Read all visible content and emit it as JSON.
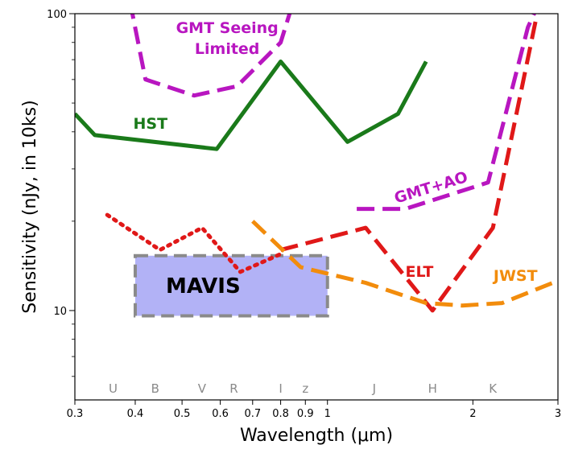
{
  "chart_data": {
    "type": "line",
    "title": "",
    "xlabel": "Wavelength (μm)",
    "ylabel": "Sensitivity (nJy, in 10ks)",
    "xscale": "log",
    "yscale": "log",
    "xlim": [
      0.3,
      3
    ],
    "ylim": [
      5,
      100
    ],
    "x_ticks": [
      {
        "value": 0.3,
        "label": "0.3"
      },
      {
        "value": 0.4,
        "label": "0.4"
      },
      {
        "value": 0.5,
        "label": "0.5"
      },
      {
        "value": 0.6,
        "label": "0.6"
      },
      {
        "value": 0.7,
        "label": "0.7"
      },
      {
        "value": 0.8,
        "label": "0.8"
      },
      {
        "value": 0.9,
        "label": "0.9"
      },
      {
        "value": 1,
        "label": "1"
      },
      {
        "value": 2,
        "label": "2"
      },
      {
        "value": 3,
        "label": "3"
      }
    ],
    "y_ticks": [
      {
        "value": 10,
        "label": "10"
      },
      {
        "value": 100,
        "label": "100"
      }
    ],
    "y_minor_ticks": [
      6,
      7,
      8,
      9,
      20,
      30,
      40,
      50,
      60,
      70,
      80,
      90
    ],
    "grid": false,
    "bands": [
      {
        "label": "U",
        "x": 0.36
      },
      {
        "label": "B",
        "x": 0.44
      },
      {
        "label": "V",
        "x": 0.55
      },
      {
        "label": "R",
        "x": 0.64
      },
      {
        "label": "I",
        "x": 0.8
      },
      {
        "label": "z",
        "x": 0.9
      },
      {
        "label": "J",
        "x": 1.25
      },
      {
        "label": "H",
        "x": 1.65
      },
      {
        "label": "K",
        "x": 2.2
      }
    ],
    "series": [
      {
        "name": "HST",
        "color": "#1a7a1a",
        "dash": "solid",
        "label_at": {
          "x": 0.43,
          "y": 41
        },
        "points": [
          [
            0.3,
            46
          ],
          [
            0.33,
            39
          ],
          [
            0.59,
            35
          ],
          [
            0.8,
            69
          ],
          [
            1.1,
            37
          ],
          [
            1.4,
            46
          ],
          [
            1.6,
            69
          ]
        ]
      },
      {
        "name": "GMT Seeing\nLimited",
        "color": "#b816c0",
        "dash": "dashed",
        "label_at": {
          "x": 0.62,
          "y": 86
        },
        "points": [
          [
            0.39,
            110
          ],
          [
            0.42,
            60
          ],
          [
            0.53,
            53
          ],
          [
            0.65,
            57
          ],
          [
            0.8,
            80
          ],
          [
            0.85,
            110
          ]
        ]
      },
      {
        "name": "GMT+AO",
        "color": "#b816c0",
        "dash": "dashed",
        "label_at": {
          "x": 1.65,
          "y": 25
        },
        "points": [
          [
            1.15,
            22
          ],
          [
            1.45,
            22
          ],
          [
            2.15,
            27
          ],
          [
            2.6,
            90
          ],
          [
            2.75,
            110
          ]
        ]
      },
      {
        "name": "ELT",
        "color": "#e01818",
        "dash": "dashed",
        "label_at": {
          "x": 1.55,
          "y": 13
        },
        "points": [
          [
            0.8,
            16
          ],
          [
            1.2,
            19
          ],
          [
            1.65,
            10
          ],
          [
            2.2,
            19
          ],
          [
            2.75,
            110
          ]
        ]
      },
      {
        "name": "",
        "color": "#e01818",
        "dash": "dotted",
        "points": [
          [
            0.35,
            21
          ],
          [
            0.45,
            16
          ],
          [
            0.55,
            19
          ],
          [
            0.66,
            13.5
          ],
          [
            0.8,
            15.5
          ]
        ]
      },
      {
        "name": "JWST",
        "color": "#f28c0c",
        "dash": "dashed",
        "label_at": {
          "x": 2.45,
          "y": 12.6
        },
        "points": [
          [
            0.7,
            20
          ],
          [
            0.88,
            14
          ],
          [
            1.2,
            12.4
          ],
          [
            1.6,
            10.6
          ],
          [
            1.9,
            10.4
          ],
          [
            2.3,
            10.6
          ],
          [
            3,
            12.6
          ]
        ]
      }
    ],
    "regions": [
      {
        "name": "MAVIS",
        "x": [
          0.4,
          1.0
        ],
        "y": [
          9.6,
          15.3
        ],
        "fill": "#a5a5f5",
        "stroke": "#8a8a8a"
      }
    ]
  }
}
